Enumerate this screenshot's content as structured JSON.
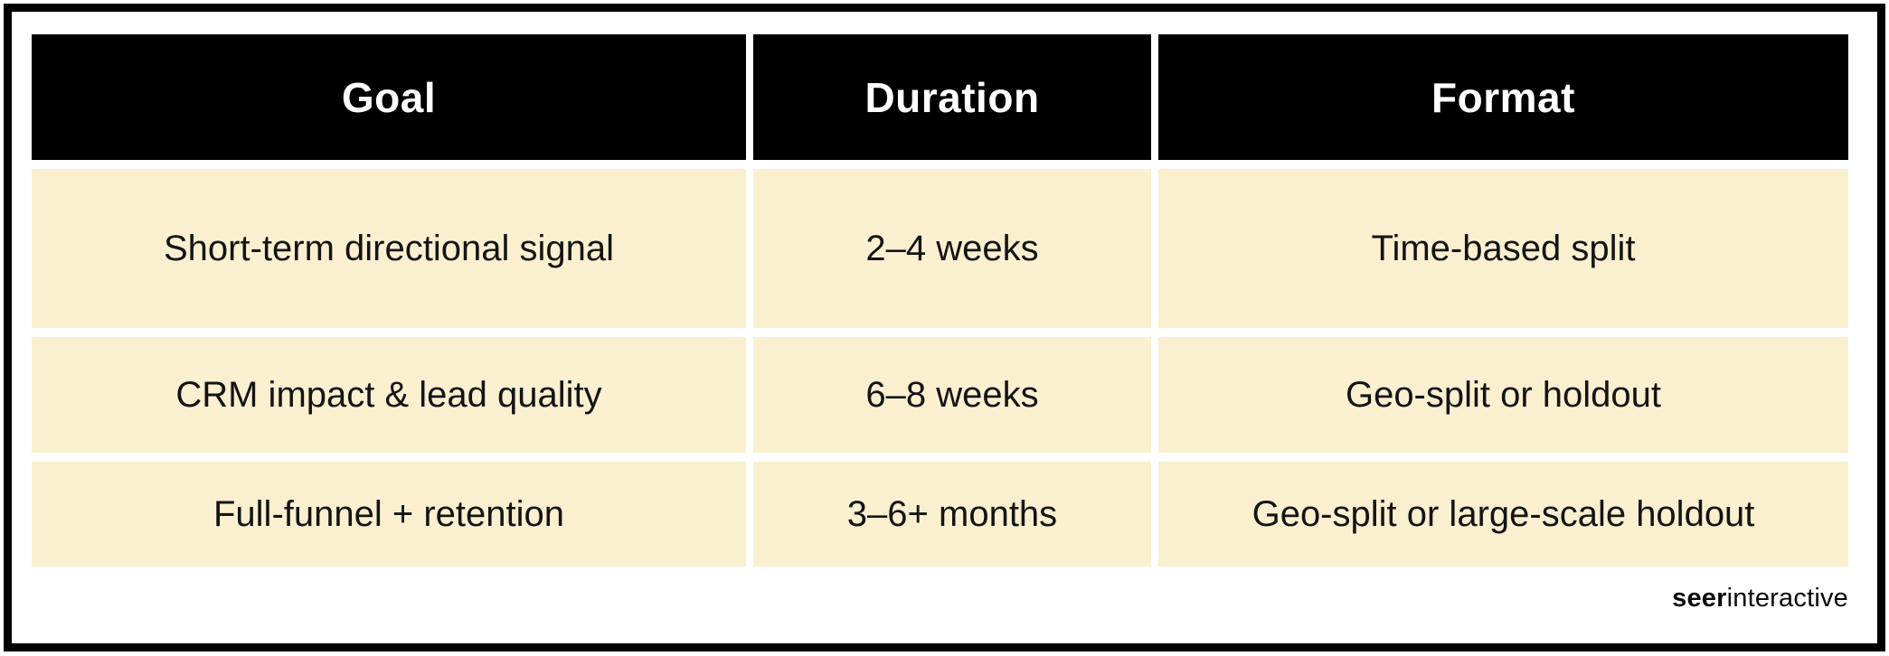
{
  "chart_data": {
    "type": "table",
    "columns": [
      "Goal",
      "Duration",
      "Format"
    ],
    "rows": [
      [
        "Short-term directional signal",
        "2–4 weeks",
        "Time-based split"
      ],
      [
        "CRM impact & lead quality",
        "6–8 weeks",
        "Geo-split or holdout"
      ],
      [
        "Full-funnel + retention",
        "3–6+ months",
        "Geo-split or large-scale holdout"
      ]
    ]
  },
  "branding": {
    "logo_bold": "seer",
    "logo_regular": "interactive"
  },
  "colors": {
    "frame": "#000000",
    "header_bg": "#000000",
    "header_text": "#ffffff",
    "cell_bg": "#faf0d0",
    "body_text": "#141414"
  }
}
